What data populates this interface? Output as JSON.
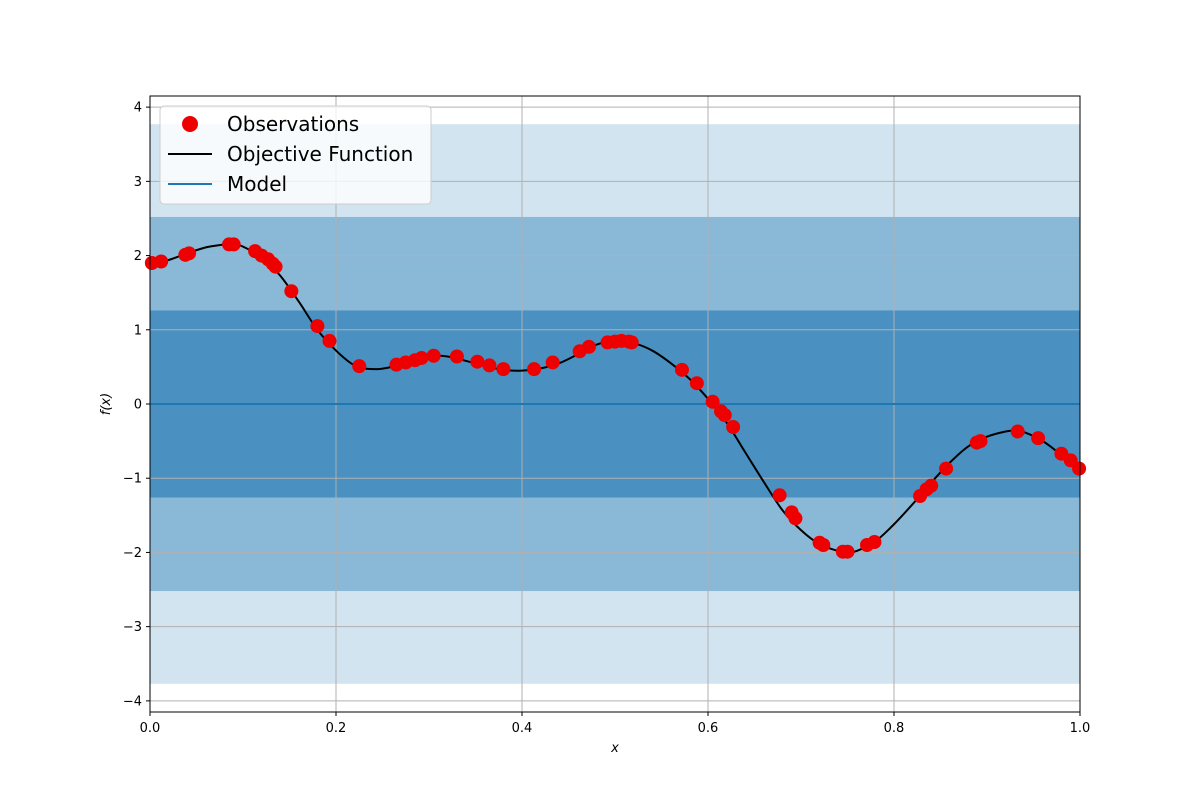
{
  "chart_data": {
    "type": "scatter",
    "title": "",
    "xlabel": "x",
    "ylabel": "f(x)",
    "xlim": [
      0.0,
      1.0
    ],
    "ylim": [
      -4.15,
      4.15
    ],
    "grid": true,
    "legend_placement": "top-left",
    "x_ticks": [
      "0.0",
      "0.2",
      "0.4",
      "0.6",
      "0.8",
      "1.0"
    ],
    "y_ticks": [
      "−4",
      "−3",
      "−2",
      "−1",
      "0",
      "1",
      "2",
      "3",
      "4"
    ],
    "legend": [
      {
        "name": "Observations",
        "marker": "circle",
        "color": "#ee0000"
      },
      {
        "name": "Objective Function",
        "marker": "line",
        "color": "#000000"
      },
      {
        "name": "Model",
        "marker": "line",
        "color": "#1f77b4"
      }
    ],
    "model": {
      "mean": 0.0,
      "bands": [
        {
          "lower": -3.77,
          "upper": 3.77,
          "color": "#1f77b4",
          "opacity": 0.2
        },
        {
          "lower": -2.52,
          "upper": 2.52,
          "color": "#1f77b4",
          "opacity": 0.4
        },
        {
          "lower": -1.26,
          "upper": 1.26,
          "color": "#1f77b4",
          "opacity": 0.6
        }
      ]
    },
    "objective_function": {
      "x": [
        0.0,
        0.02,
        0.04,
        0.06,
        0.08,
        0.09,
        0.1,
        0.12,
        0.14,
        0.16,
        0.18,
        0.2,
        0.22,
        0.24,
        0.26,
        0.28,
        0.3,
        0.32,
        0.34,
        0.36,
        0.38,
        0.4,
        0.42,
        0.44,
        0.46,
        0.48,
        0.5,
        0.52,
        0.54,
        0.56,
        0.58,
        0.6,
        0.62,
        0.64,
        0.66,
        0.68,
        0.7,
        0.72,
        0.74,
        0.75,
        0.76,
        0.78,
        0.8,
        0.82,
        0.84,
        0.86,
        0.88,
        0.9,
        0.92,
        0.93,
        0.94,
        0.96,
        0.98,
        1.0
      ],
      "y": [
        1.88,
        1.94,
        2.03,
        2.11,
        2.15,
        2.16,
        2.12,
        1.98,
        1.73,
        1.38,
        1.0,
        0.72,
        0.52,
        0.47,
        0.5,
        0.59,
        0.65,
        0.64,
        0.58,
        0.51,
        0.46,
        0.45,
        0.48,
        0.55,
        0.67,
        0.8,
        0.85,
        0.82,
        0.72,
        0.55,
        0.34,
        0.07,
        -0.25,
        -0.65,
        -1.05,
        -1.43,
        -1.7,
        -1.89,
        -1.98,
        -2.0,
        -1.98,
        -1.85,
        -1.62,
        -1.35,
        -1.06,
        -0.79,
        -0.57,
        -0.44,
        -0.37,
        -0.36,
        -0.38,
        -0.5,
        -0.69,
        -0.92
      ]
    },
    "observations": {
      "x": [
        0.002,
        0.012,
        0.038,
        0.042,
        0.085,
        0.09,
        0.113,
        0.12,
        0.127,
        0.132,
        0.135,
        0.152,
        0.18,
        0.193,
        0.225,
        0.265,
        0.275,
        0.285,
        0.292,
        0.305,
        0.33,
        0.352,
        0.365,
        0.38,
        0.413,
        0.433,
        0.462,
        0.472,
        0.492,
        0.5,
        0.507,
        0.515,
        0.518,
        0.572,
        0.588,
        0.605,
        0.614,
        0.618,
        0.627,
        0.677,
        0.69,
        0.694,
        0.72,
        0.724,
        0.745,
        0.75,
        0.771,
        0.779,
        0.828,
        0.835,
        0.84,
        0.856,
        0.889,
        0.893,
        0.933,
        0.955,
        0.98,
        0.99,
        0.999
      ],
      "y": [
        1.9,
        1.92,
        2.01,
        2.03,
        2.15,
        2.15,
        2.06,
        2.0,
        1.95,
        1.89,
        1.85,
        1.52,
        1.05,
        0.85,
        0.51,
        0.53,
        0.56,
        0.59,
        0.62,
        0.65,
        0.64,
        0.57,
        0.52,
        0.47,
        0.47,
        0.56,
        0.71,
        0.77,
        0.83,
        0.84,
        0.85,
        0.84,
        0.83,
        0.46,
        0.28,
        0.03,
        -0.1,
        -0.15,
        -0.31,
        -1.23,
        -1.46,
        -1.54,
        -1.87,
        -1.9,
        -1.99,
        -1.99,
        -1.9,
        -1.86,
        -1.24,
        -1.15,
        -1.1,
        -0.87,
        -0.52,
        -0.5,
        -0.37,
        -0.46,
        -0.67,
        -0.76,
        -0.87
      ]
    }
  }
}
